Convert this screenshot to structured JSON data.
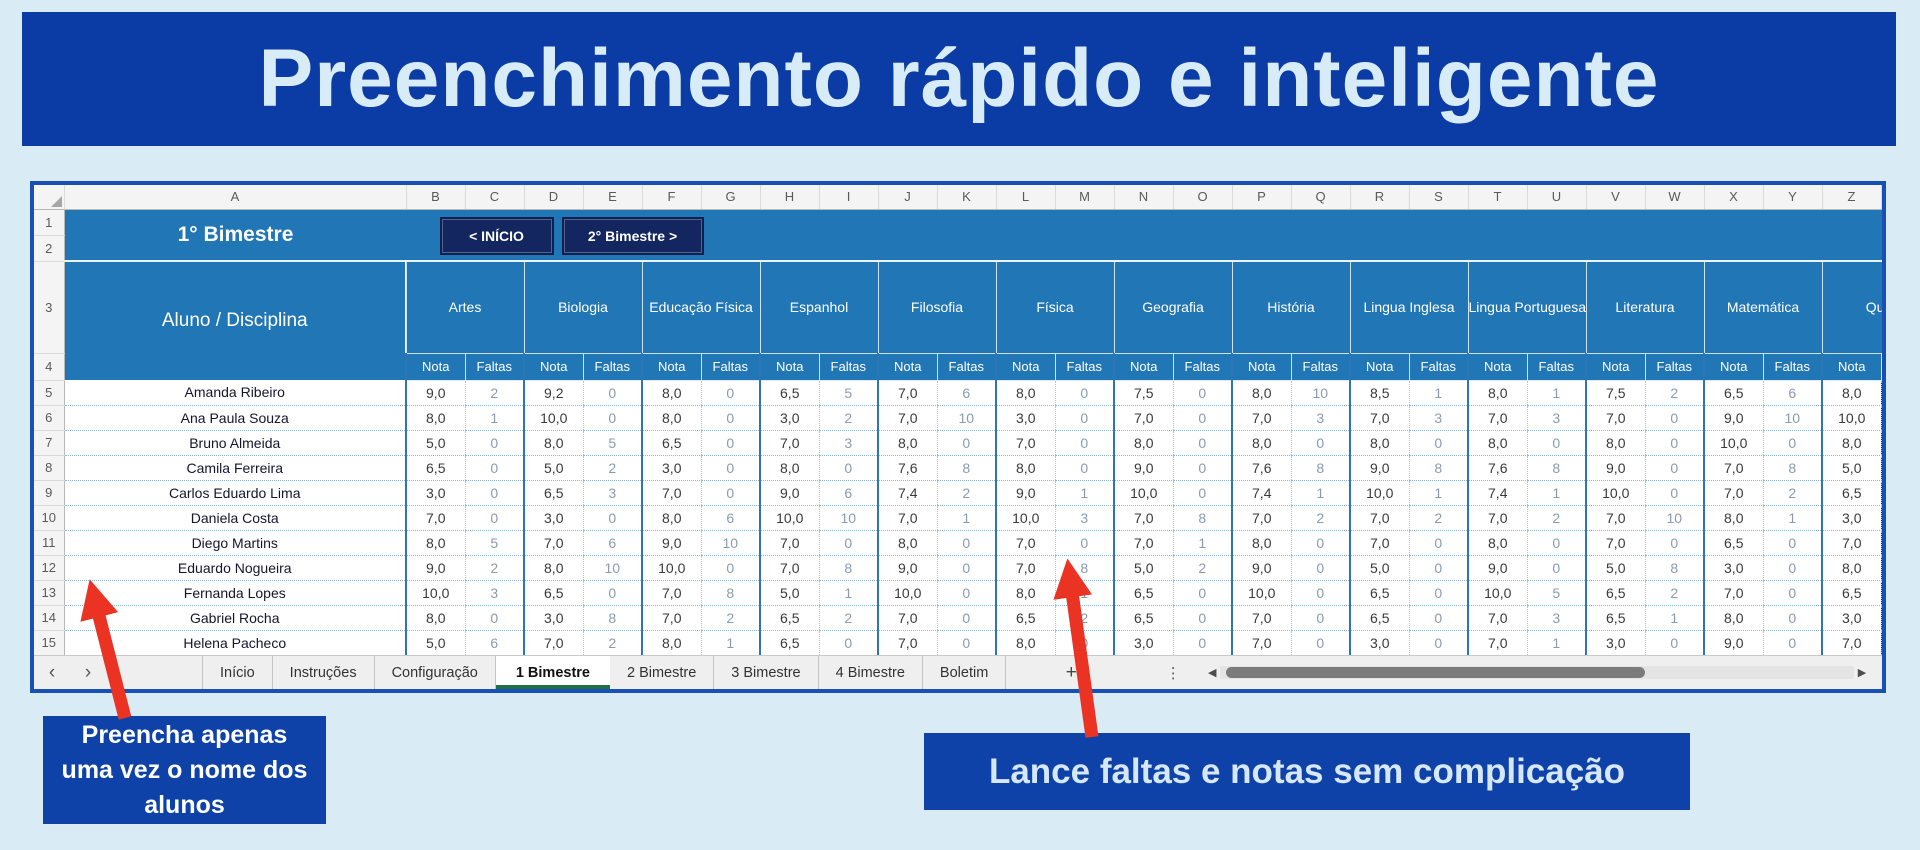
{
  "banner": {
    "title": "Preenchimento rápido e inteligente"
  },
  "colors": {
    "page_background": "#d9ecf5",
    "banner_background": "#0b3ca6",
    "banner_text": "#d8ecf8",
    "sheet_header_blue": "#2176b5",
    "button_navy": "#13265f",
    "callout_background": "#0e42a8",
    "arrow_red": "#ea3323",
    "active_tab_underline": "#1e7145",
    "gridline_dotted": "#86b7e0",
    "group_border": "#2e75b6",
    "faltas_text": "#8a9bb0",
    "nota_text": "#3a3a3a"
  },
  "icons": {
    "tabs_nav_prev": "‹",
    "tabs_nav_next": "›",
    "add_sheet": "+",
    "tabs_more": "⋮",
    "scroll_left": "◀",
    "scroll_right": "▶"
  },
  "spreadsheet": {
    "column_letters": [
      "A",
      "B",
      "C",
      "D",
      "E",
      "F",
      "G",
      "H",
      "I",
      "J",
      "K",
      "L",
      "M",
      "N",
      "O",
      "P",
      "Q",
      "R",
      "S",
      "T",
      "U",
      "V",
      "W",
      "X",
      "Y",
      "Z"
    ],
    "row_numbers": [
      "1",
      "2",
      "3",
      "4",
      "5",
      "6",
      "7",
      "8",
      "9",
      "10",
      "11",
      "12",
      "13",
      "14",
      "15"
    ],
    "period_title": "1° Bimestre",
    "buttons": {
      "inicio": "< INÍCIO",
      "next": "2° Bimestre >"
    },
    "table": {
      "student_header": "Aluno / Disciplina",
      "nota_label": "Nota",
      "faltas_label": "Faltas",
      "subjects": [
        "Artes",
        "Biologia",
        "Educação Física",
        "Espanhol",
        "Filosofia",
        "Física",
        "Geografia",
        "História",
        "Lingua Inglesa",
        "Lingua Portuguesa",
        "Literatura",
        "Matemática",
        "Química"
      ],
      "students": [
        {
          "name": "Amanda Ribeiro",
          "cells": [
            "9,0",
            "2",
            "9,2",
            "0",
            "8,0",
            "0",
            "6,5",
            "5",
            "7,0",
            "6",
            "8,0",
            "0",
            "7,5",
            "0",
            "8,0",
            "10",
            "8,5",
            "1",
            "8,0",
            "1",
            "7,5",
            "2",
            "6,5",
            "6",
            "8,0"
          ]
        },
        {
          "name": "Ana Paula Souza",
          "cells": [
            "8,0",
            "1",
            "10,0",
            "0",
            "8,0",
            "0",
            "3,0",
            "2",
            "7,0",
            "10",
            "3,0",
            "0",
            "7,0",
            "0",
            "7,0",
            "3",
            "7,0",
            "3",
            "7,0",
            "3",
            "7,0",
            "0",
            "9,0",
            "10",
            "10,0"
          ]
        },
        {
          "name": "Bruno Almeida",
          "cells": [
            "5,0",
            "0",
            "8,0",
            "5",
            "6,5",
            "0",
            "7,0",
            "3",
            "8,0",
            "0",
            "7,0",
            "0",
            "8,0",
            "0",
            "8,0",
            "0",
            "8,0",
            "0",
            "8,0",
            "0",
            "8,0",
            "0",
            "10,0",
            "0",
            "8,0"
          ]
        },
        {
          "name": "Camila Ferreira",
          "cells": [
            "6,5",
            "0",
            "5,0",
            "2",
            "3,0",
            "0",
            "8,0",
            "0",
            "7,6",
            "8",
            "8,0",
            "0",
            "9,0",
            "0",
            "7,6",
            "8",
            "9,0",
            "8",
            "7,6",
            "8",
            "9,0",
            "0",
            "7,0",
            "8",
            "5,0"
          ]
        },
        {
          "name": "Carlos Eduardo Lima",
          "cells": [
            "3,0",
            "0",
            "6,5",
            "3",
            "7,0",
            "0",
            "9,0",
            "6",
            "7,4",
            "2",
            "9,0",
            "1",
            "10,0",
            "0",
            "7,4",
            "1",
            "10,0",
            "1",
            "7,4",
            "1",
            "10,0",
            "0",
            "7,0",
            "2",
            "6,5"
          ]
        },
        {
          "name": "Daniela Costa",
          "cells": [
            "7,0",
            "0",
            "3,0",
            "0",
            "8,0",
            "6",
            "10,0",
            "10",
            "7,0",
            "1",
            "10,0",
            "3",
            "7,0",
            "8",
            "7,0",
            "2",
            "7,0",
            "2",
            "7,0",
            "2",
            "7,0",
            "10",
            "8,0",
            "1",
            "3,0"
          ]
        },
        {
          "name": "Diego Martins",
          "cells": [
            "8,0",
            "5",
            "7,0",
            "6",
            "9,0",
            "10",
            "7,0",
            "0",
            "8,0",
            "0",
            "7,0",
            "0",
            "7,0",
            "1",
            "8,0",
            "0",
            "7,0",
            "0",
            "8,0",
            "0",
            "7,0",
            "0",
            "6,5",
            "0",
            "7,0"
          ]
        },
        {
          "name": "Eduardo Nogueira",
          "cells": [
            "9,0",
            "2",
            "8,0",
            "10",
            "10,0",
            "0",
            "7,0",
            "8",
            "9,0",
            "0",
            "7,0",
            "8",
            "5,0",
            "2",
            "9,0",
            "0",
            "5,0",
            "0",
            "9,0",
            "0",
            "5,0",
            "8",
            "3,0",
            "0",
            "8,0"
          ]
        },
        {
          "name": "Fernanda Lopes",
          "cells": [
            "10,0",
            "3",
            "6,5",
            "0",
            "7,0",
            "8",
            "5,0",
            "1",
            "10,0",
            "0",
            "8,0",
            "1",
            "6,5",
            "0",
            "10,0",
            "0",
            "6,5",
            "0",
            "10,0",
            "5",
            "6,5",
            "2",
            "7,0",
            "0",
            "6,5"
          ]
        },
        {
          "name": "Gabriel Rocha",
          "cells": [
            "8,0",
            "0",
            "3,0",
            "8",
            "7,0",
            "2",
            "6,5",
            "2",
            "7,0",
            "0",
            "6,5",
            "2",
            "6,5",
            "0",
            "7,0",
            "0",
            "6,5",
            "0",
            "7,0",
            "3",
            "6,5",
            "1",
            "8,0",
            "0",
            "3,0"
          ]
        },
        {
          "name": "Helena Pacheco",
          "cells": [
            "5,0",
            "6",
            "7,0",
            "2",
            "8,0",
            "1",
            "6,5",
            "0",
            "7,0",
            "0",
            "8,0",
            "0",
            "3,0",
            "0",
            "7,0",
            "0",
            "3,0",
            "0",
            "7,0",
            "1",
            "3,0",
            "0",
            "9,0",
            "0",
            "7,0"
          ]
        }
      ]
    },
    "sheet_tabs": {
      "items": [
        "Início",
        "Instruções",
        "Configuração",
        "1 Bimestre",
        "2 Bimestre",
        "3 Bimestre",
        "4 Bimestre",
        "Boletim"
      ],
      "active": "1 Bimestre"
    }
  },
  "callouts": {
    "left": "Preencha apenas uma vez o nome dos alunos",
    "right": "Lance faltas e notas sem complicação"
  }
}
